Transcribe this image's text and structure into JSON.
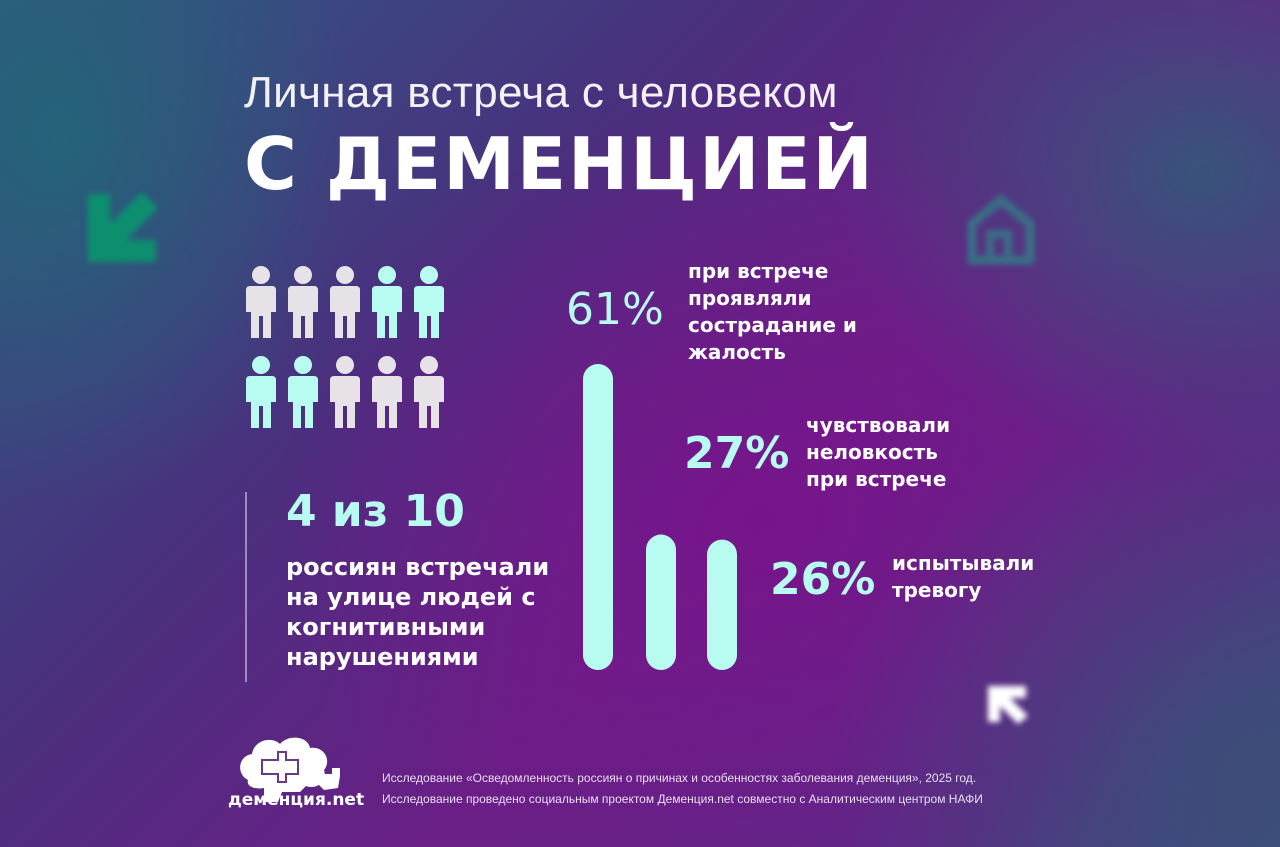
{
  "title": {
    "line1": "Личная встреча с человеком",
    "line2": "С ДЕМЕНЦИЕЙ"
  },
  "people_stat": {
    "value": "4 из 10",
    "description": "россиян встречали на улице людей с когнитивными нарушениями",
    "highlighted": [
      3,
      4,
      5,
      6
    ],
    "total": 10
  },
  "chart_data": {
    "type": "bar",
    "categories": [
      "при встрече проявляли сострадание и жалость",
      "чувствовали неловкость при встрече",
      "испытывали тревогу"
    ],
    "values": [
      61,
      27,
      26
    ],
    "value_labels": [
      "61%",
      "27%",
      "26%"
    ],
    "ylim": [
      0,
      61
    ]
  },
  "footer": {
    "line1": "Исследование «Осведомленность россиян о причинах и особенностях заболевания деменция», 2025 год.",
    "line2": "Исследование проведено социальным проектом Деменция.net совместно с Аналитическим центром НАФИ"
  },
  "logo": {
    "text": "деменция.net"
  },
  "colors": {
    "accent": "#b8fbf1",
    "person_default": "#e6e2e8",
    "person_highlight": "#b8fbf1"
  }
}
